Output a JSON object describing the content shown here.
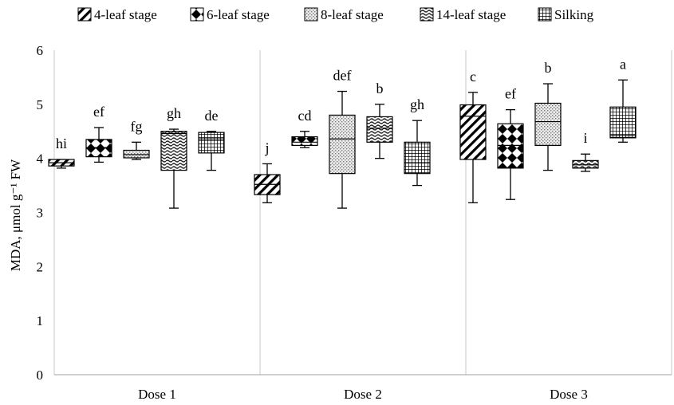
{
  "chart_data": {
    "type": "box",
    "ylabel": "MDA, μmol g⁻¹ FW",
    "ylim": [
      0,
      6
    ],
    "yticks": [
      0,
      1,
      2,
      3,
      4,
      5,
      6
    ],
    "grid": false,
    "legend_position": "top",
    "categories": [
      "Dose 1",
      "Dose 2",
      "Dose 3"
    ],
    "series": [
      {
        "name": "4-leaf stage",
        "pattern": "diagonal-hatch",
        "boxes": [
          {
            "min": 3.82,
            "q1": 3.86,
            "median": 3.92,
            "q3": 3.98,
            "max": 3.98,
            "letter": "hi"
          },
          {
            "min": 3.18,
            "q1": 3.33,
            "median": 3.52,
            "q3": 3.7,
            "max": 3.9,
            "letter": "j"
          },
          {
            "min": 3.18,
            "q1": 3.98,
            "median": 4.78,
            "q3": 4.99,
            "max": 5.22,
            "letter": "c"
          }
        ]
      },
      {
        "name": "6-leaf stage",
        "pattern": "diamonds",
        "boxes": [
          {
            "min": 3.93,
            "q1": 4.03,
            "median": 4.2,
            "q3": 4.35,
            "max": 4.57,
            "letter": "ef"
          },
          {
            "min": 4.2,
            "q1": 4.24,
            "median": 4.3,
            "q3": 4.4,
            "max": 4.5,
            "letter": "cd"
          },
          {
            "min": 3.24,
            "q1": 3.82,
            "median": 4.24,
            "q3": 4.64,
            "max": 4.9,
            "letter": "ef"
          }
        ]
      },
      {
        "name": "8-leaf stage",
        "pattern": "dots",
        "boxes": [
          {
            "min": 3.98,
            "q1": 4.01,
            "median": 4.07,
            "q3": 4.15,
            "max": 4.3,
            "letter": "fg"
          },
          {
            "min": 3.08,
            "q1": 3.72,
            "median": 4.36,
            "q3": 4.8,
            "max": 5.24,
            "letter": "def"
          },
          {
            "min": 3.78,
            "q1": 4.24,
            "median": 4.68,
            "q3": 5.02,
            "max": 5.38,
            "letter": "b"
          }
        ]
      },
      {
        "name": "14-leaf stage",
        "pattern": "speckle",
        "boxes": [
          {
            "min": 3.08,
            "q1": 3.78,
            "median": 4.46,
            "q3": 4.5,
            "max": 4.54,
            "letter": "gh"
          },
          {
            "min": 4.0,
            "q1": 4.3,
            "median": 4.56,
            "q3": 4.77,
            "max": 5.0,
            "letter": "b"
          },
          {
            "min": 3.76,
            "q1": 3.82,
            "median": 3.88,
            "q3": 3.96,
            "max": 4.08,
            "letter": "i"
          }
        ]
      },
      {
        "name": "Silking",
        "pattern": "grid",
        "boxes": [
          {
            "min": 3.78,
            "q1": 4.1,
            "median": 4.36,
            "q3": 4.48,
            "max": 4.5,
            "letter": "de"
          },
          {
            "min": 3.5,
            "q1": 3.72,
            "median": 3.92,
            "q3": 4.3,
            "max": 4.7,
            "letter": "gh"
          },
          {
            "min": 4.3,
            "q1": 4.38,
            "median": 4.42,
            "q3": 4.95,
            "max": 5.45,
            "letter": "a"
          }
        ]
      }
    ]
  }
}
